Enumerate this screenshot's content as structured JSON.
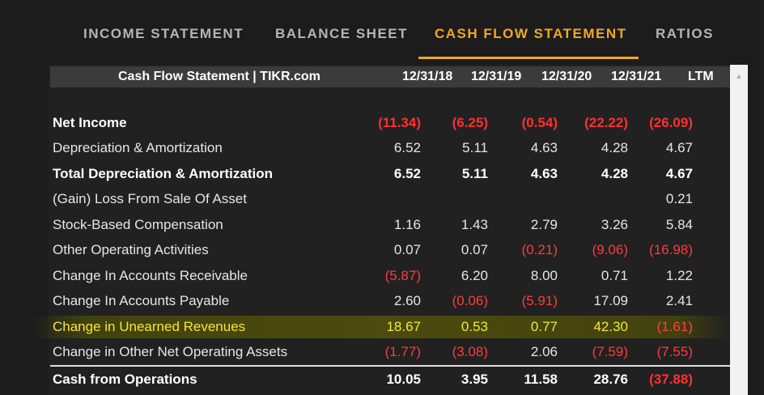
{
  "tabs": [
    {
      "label": "INCOME STATEMENT",
      "active": false
    },
    {
      "label": "BALANCE SHEET",
      "active": false
    },
    {
      "label": "CASH FLOW STATEMENT",
      "active": true
    },
    {
      "label": "RATIOS",
      "active": false
    }
  ],
  "table": {
    "title": "Cash Flow Statement | TIKR.com",
    "columns": [
      "12/31/18",
      "12/31/19",
      "12/31/20",
      "12/31/21",
      "LTM"
    ],
    "rows": [
      {
        "label": "Net Income",
        "bold": true,
        "values": [
          "(11.34)",
          "(6.25)",
          "(0.54)",
          "(22.22)",
          "(26.09)"
        ],
        "neg": [
          true,
          true,
          true,
          true,
          true
        ]
      },
      {
        "label": "Depreciation & Amortization",
        "bold": false,
        "values": [
          "6.52",
          "5.11",
          "4.63",
          "4.28",
          "4.67"
        ],
        "neg": [
          false,
          false,
          false,
          false,
          false
        ]
      },
      {
        "label": "Total Depreciation & Amortization",
        "bold": true,
        "values": [
          "6.52",
          "5.11",
          "4.63",
          "4.28",
          "4.67"
        ],
        "neg": [
          false,
          false,
          false,
          false,
          false
        ]
      },
      {
        "label": "(Gain) Loss From Sale Of Asset",
        "bold": false,
        "values": [
          "",
          "",
          "",
          "",
          "0.21"
        ],
        "neg": [
          false,
          false,
          false,
          false,
          false
        ]
      },
      {
        "label": "Stock-Based Compensation",
        "bold": false,
        "values": [
          "1.16",
          "1.43",
          "2.79",
          "3.26",
          "5.84"
        ],
        "neg": [
          false,
          false,
          false,
          false,
          false
        ]
      },
      {
        "label": "Other Operating Activities",
        "bold": false,
        "values": [
          "0.07",
          "0.07",
          "(0.21)",
          "(9.06)",
          "(16.98)"
        ],
        "neg": [
          false,
          false,
          true,
          true,
          true
        ]
      },
      {
        "label": "Change In Accounts Receivable",
        "bold": false,
        "values": [
          "(5.87)",
          "6.20",
          "8.00",
          "0.71",
          "1.22"
        ],
        "neg": [
          true,
          false,
          false,
          false,
          false
        ]
      },
      {
        "label": "Change In Accounts Payable",
        "bold": false,
        "values": [
          "2.60",
          "(0.06)",
          "(5.91)",
          "17.09",
          "2.41"
        ],
        "neg": [
          false,
          true,
          true,
          false,
          false
        ]
      },
      {
        "label": "Change in Unearned Revenues",
        "bold": false,
        "highlight": true,
        "values": [
          "18.67",
          "0.53",
          "0.77",
          "42.30",
          "(1.61)"
        ],
        "neg": [
          false,
          false,
          false,
          false,
          true
        ]
      },
      {
        "label": "Change in Other Net Operating Assets",
        "bold": false,
        "values": [
          "(1.77)",
          "(3.08)",
          "2.06",
          "(7.59)",
          "(7.55)"
        ],
        "neg": [
          true,
          true,
          false,
          true,
          true
        ]
      },
      {
        "label": "Cash from Operations",
        "bold": true,
        "values": [
          "10.05",
          "3.95",
          "11.58",
          "28.76",
          "(37.88)"
        ],
        "neg": [
          false,
          false,
          false,
          false,
          true
        ]
      }
    ]
  },
  "colors": {
    "accent": "#f5a623",
    "negative": "#ff3b3b",
    "highlight_text": "#f2e63b"
  }
}
